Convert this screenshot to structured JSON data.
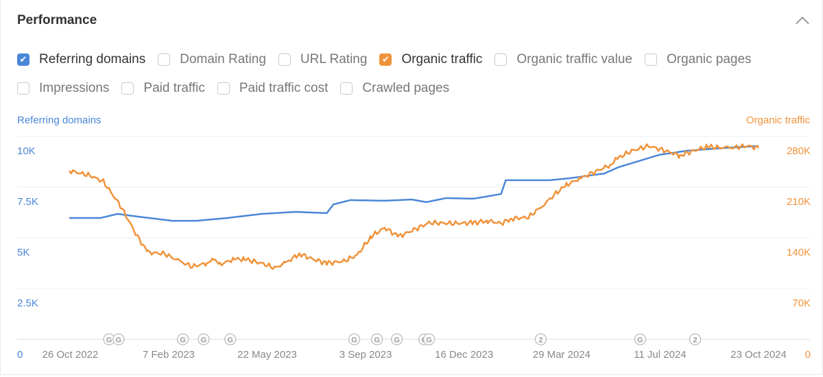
{
  "header": {
    "title": "Performance"
  },
  "options": [
    [
      {
        "label": "Referring domains",
        "checked": true,
        "color": "#4a86d8"
      },
      {
        "label": "Domain Rating",
        "checked": false
      },
      {
        "label": "URL Rating",
        "checked": false
      },
      {
        "label": "Organic traffic",
        "checked": true,
        "color": "#f0923a"
      },
      {
        "label": "Organic traffic value",
        "checked": false
      },
      {
        "label": "Organic pages",
        "checked": false
      }
    ],
    [
      {
        "label": "Impressions",
        "checked": false
      },
      {
        "label": "Paid traffic",
        "checked": false
      },
      {
        "label": "Paid traffic cost",
        "checked": false
      },
      {
        "label": "Crawled pages",
        "checked": false
      }
    ]
  ],
  "chart_data": {
    "type": "line",
    "left_axis": {
      "label": "Referring domains",
      "ticks": [
        0,
        2500,
        5000,
        7500,
        10000
      ],
      "tick_labels": [
        "0",
        "2.5K",
        "5K",
        "7.5K",
        "10K"
      ],
      "range": [
        0,
        10000
      ],
      "color": "#4a86d8"
    },
    "right_axis": {
      "label": "Organic traffic",
      "ticks": [
        0,
        70000,
        140000,
        210000,
        280000
      ],
      "tick_labels": [
        "0",
        "70K",
        "140K",
        "210K",
        "280K"
      ],
      "range": [
        0,
        280000
      ],
      "color": "#f0923a"
    },
    "x_axis": {
      "unit": "days since 26 Oct 2022",
      "range": [
        0,
        728
      ],
      "ticks": [
        1,
        105,
        209,
        313,
        417,
        520,
        624,
        728
      ],
      "tick_labels": [
        "26 Oct 2022",
        "7 Feb 2023",
        "22 May 2023",
        "3 Sep 2023",
        "16 Dec 2023",
        "29 Mar 2024",
        "11 Jul 2024",
        "23 Oct 2024"
      ]
    },
    "grid": true,
    "series": [
      {
        "name": "Referring domains",
        "axis": "left",
        "color": "#4a86d8",
        "points": [
          [
            0,
            5980
          ],
          [
            33,
            5980
          ],
          [
            51,
            6180
          ],
          [
            72,
            6050
          ],
          [
            109,
            5840
          ],
          [
            134,
            5840
          ],
          [
            167,
            5980
          ],
          [
            203,
            6180
          ],
          [
            239,
            6280
          ],
          [
            272,
            6220
          ],
          [
            279,
            6650
          ],
          [
            297,
            6860
          ],
          [
            333,
            6830
          ],
          [
            362,
            6890
          ],
          [
            377,
            6760
          ],
          [
            398,
            6960
          ],
          [
            427,
            6930
          ],
          [
            456,
            7160
          ],
          [
            461,
            7840
          ],
          [
            507,
            7840
          ],
          [
            529,
            7940
          ],
          [
            565,
            8170
          ],
          [
            580,
            8480
          ],
          [
            623,
            9090
          ],
          [
            652,
            9290
          ],
          [
            688,
            9420
          ],
          [
            728,
            9530
          ]
        ]
      },
      {
        "name": "Organic traffic",
        "axis": "right",
        "color": "#f0923a",
        "points": [
          [
            0,
            232700
          ],
          [
            22,
            226000
          ],
          [
            36,
            217600
          ],
          [
            54,
            184500
          ],
          [
            72,
            141900
          ],
          [
            83,
            120000
          ],
          [
            101,
            118000
          ],
          [
            116,
            107800
          ],
          [
            130,
            100300
          ],
          [
            145,
            105000
          ],
          [
            152,
            110700
          ],
          [
            159,
            103200
          ],
          [
            174,
            110700
          ],
          [
            185,
            110700
          ],
          [
            203,
            105000
          ],
          [
            217,
            98400
          ],
          [
            228,
            105000
          ],
          [
            243,
            118000
          ],
          [
            257,
            110700
          ],
          [
            272,
            105000
          ],
          [
            290,
            107800
          ],
          [
            304,
            116300
          ],
          [
            319,
            141900
          ],
          [
            333,
            154000
          ],
          [
            348,
            141900
          ],
          [
            362,
            150000
          ],
          [
            380,
            160800
          ],
          [
            406,
            159900
          ],
          [
            427,
            160800
          ],
          [
            442,
            163600
          ],
          [
            456,
            159900
          ],
          [
            467,
            166500
          ],
          [
            485,
            168400
          ],
          [
            500,
            184500
          ],
          [
            514,
            201500
          ],
          [
            525,
            212900
          ],
          [
            540,
            222300
          ],
          [
            558,
            232700
          ],
          [
            571,
            240300
          ],
          [
            580,
            250700
          ],
          [
            594,
            260000
          ],
          [
            612,
            266800
          ],
          [
            630,
            260000
          ],
          [
            645,
            253500
          ],
          [
            659,
            260000
          ],
          [
            674,
            265800
          ],
          [
            695,
            263900
          ],
          [
            717,
            266800
          ],
          [
            728,
            263900
          ]
        ]
      }
    ],
    "annotations": [
      {
        "day": 42,
        "label": "G"
      },
      {
        "day": 52,
        "label": "G"
      },
      {
        "day": 120,
        "label": "G"
      },
      {
        "day": 142,
        "label": "G"
      },
      {
        "day": 170,
        "label": "G"
      },
      {
        "day": 301,
        "label": "G"
      },
      {
        "day": 325,
        "label": "G"
      },
      {
        "day": 346,
        "label": "G"
      },
      {
        "day": 375,
        "label": "G"
      },
      {
        "day": 380,
        "label": "G"
      },
      {
        "day": 498,
        "label": "2"
      },
      {
        "day": 603,
        "label": "G"
      },
      {
        "day": 661,
        "label": "2"
      }
    ]
  }
}
